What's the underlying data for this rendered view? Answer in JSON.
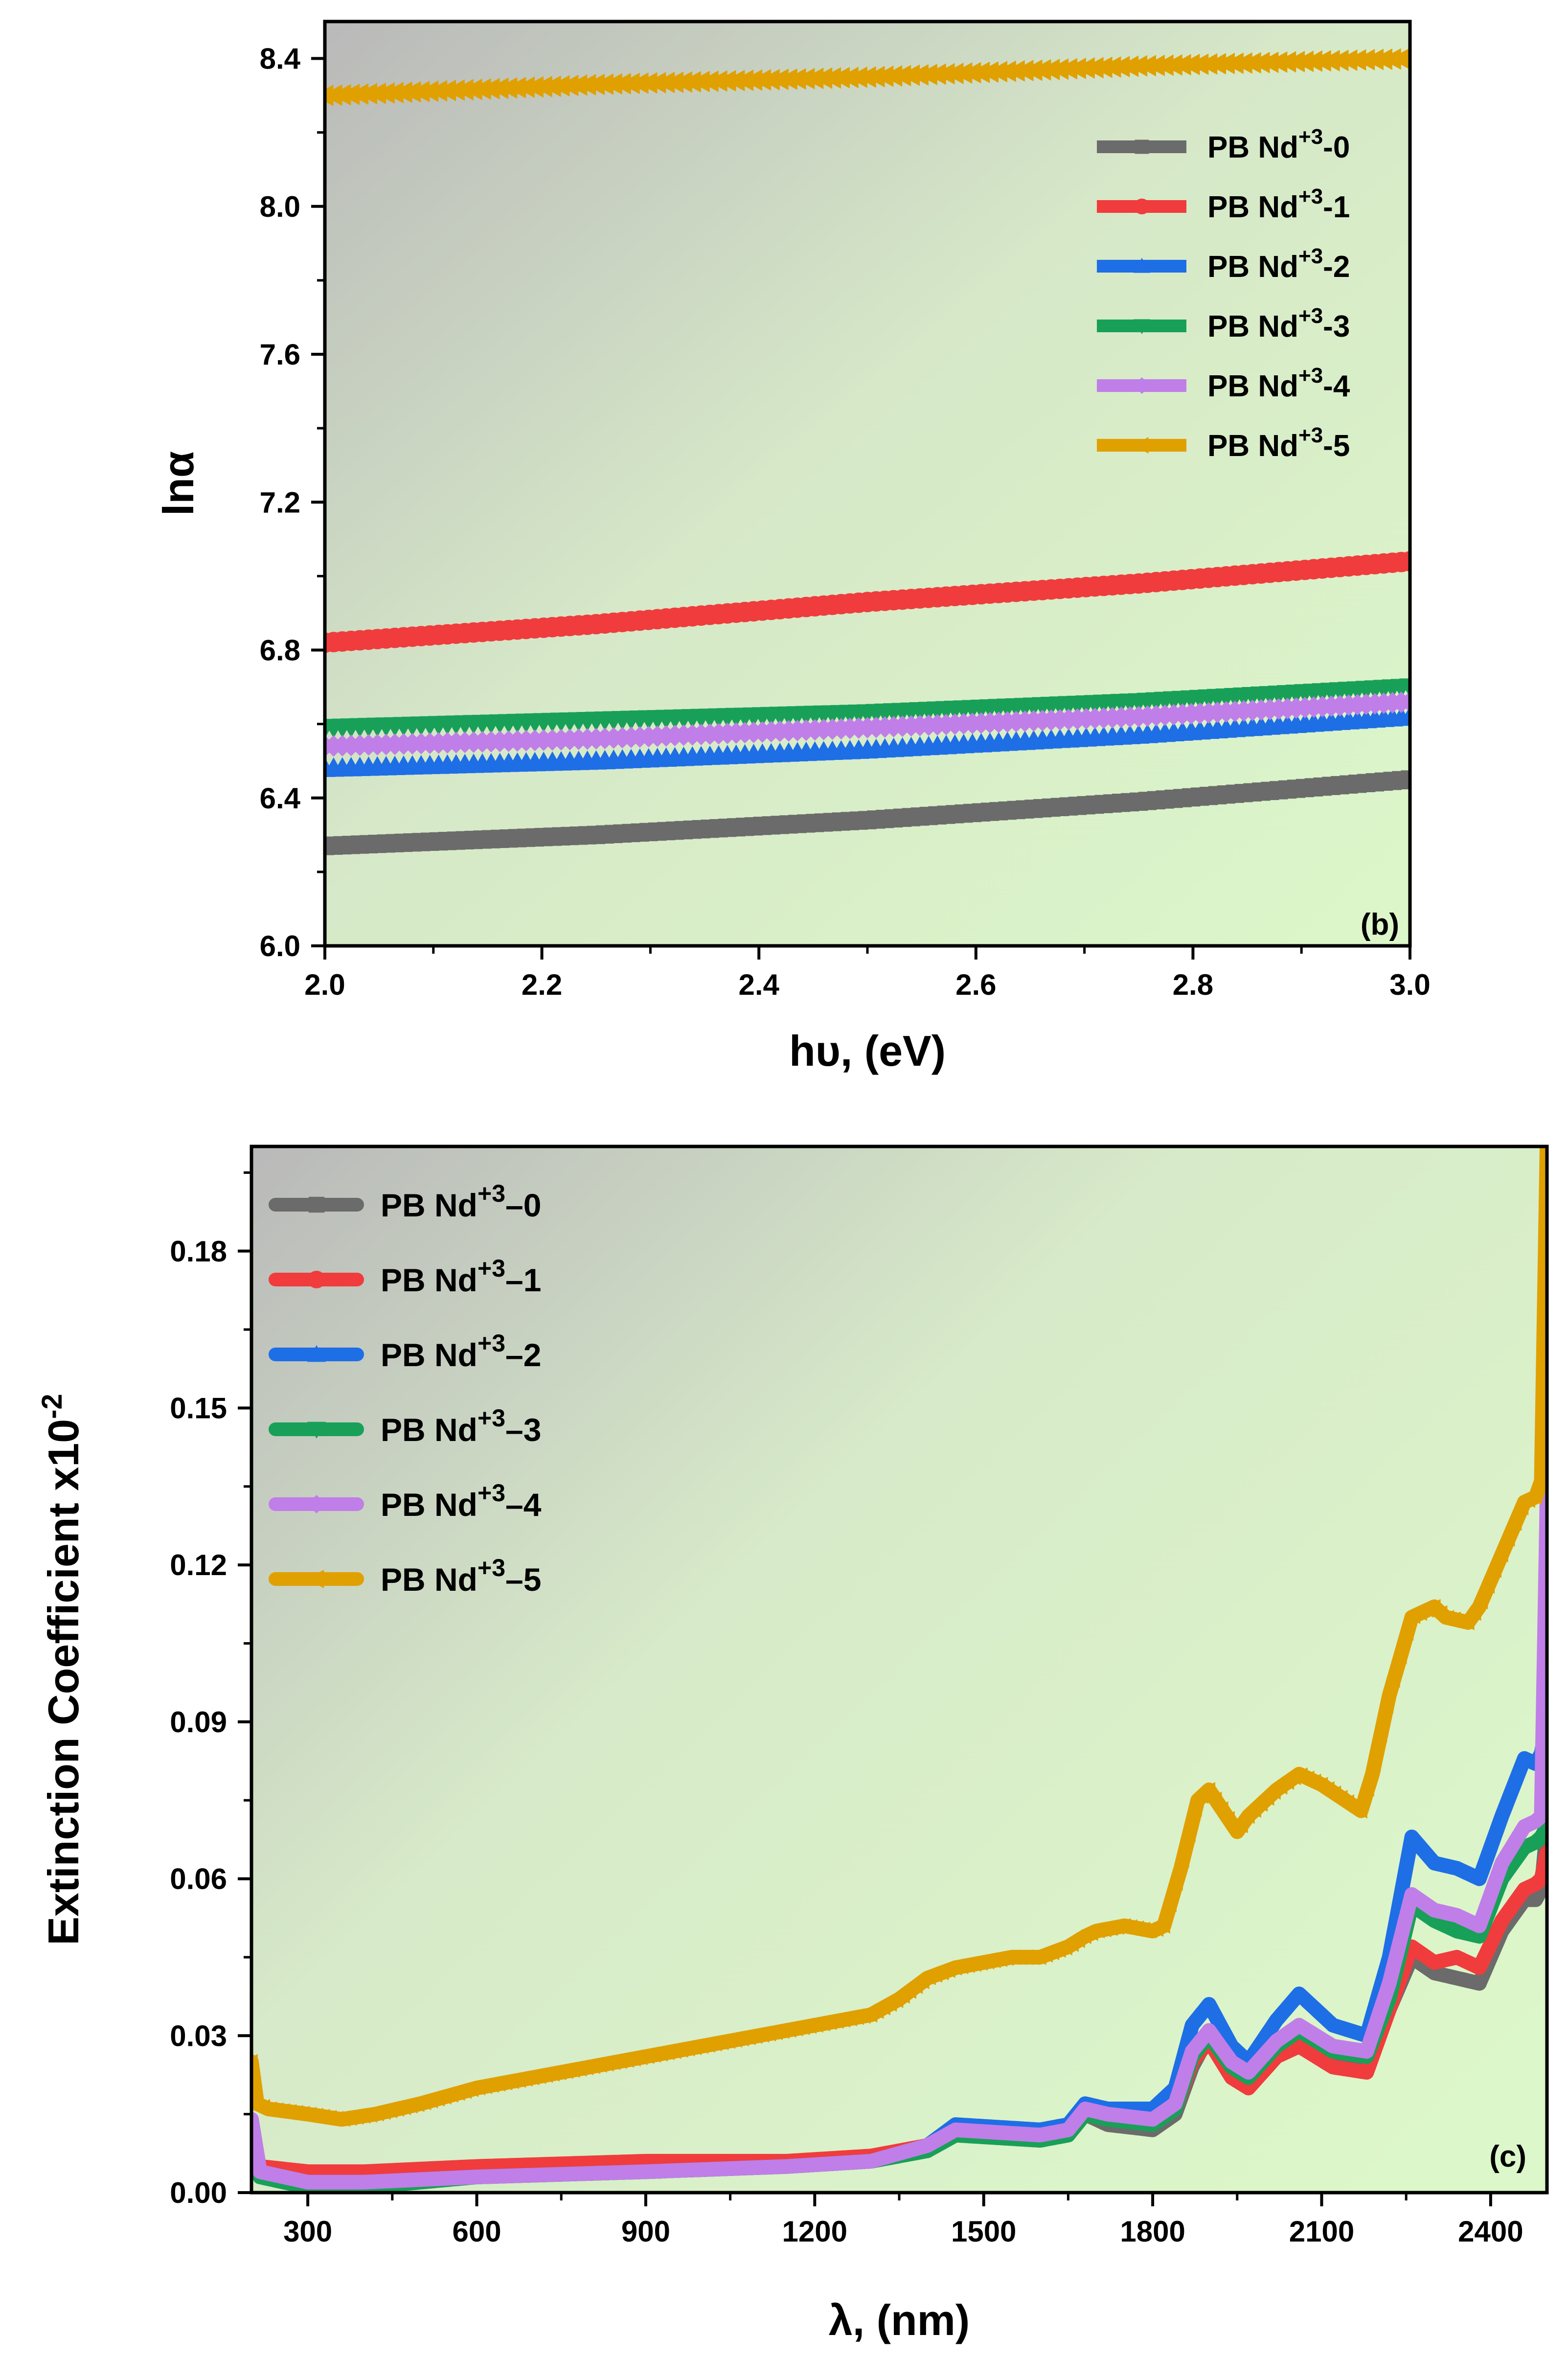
{
  "chart_data": [
    {
      "type": "scatter",
      "panel_label": "(b)",
      "xlabel": "hυ, (eV)",
      "ylabel": "lnα",
      "xlim": [
        2.0,
        3.0
      ],
      "ylim": [
        6.0,
        8.5
      ],
      "xticks": [
        "2.0",
        "2.2",
        "2.4",
        "2.6",
        "2.8",
        "3.0"
      ],
      "yticks": [
        "6.0",
        "6.4",
        "6.8",
        "7.2",
        "7.6",
        "8.0",
        "8.4"
      ],
      "legend_position": "top-right",
      "background": "gradient gray (top-left) to light green",
      "series": [
        {
          "name_prefix": "PB Nd",
          "sup": "+3",
          "suffix": "-0",
          "color": "#6b6b6b",
          "marker": "square",
          "x": [
            2.0,
            2.25,
            2.5,
            2.75,
            3.0
          ],
          "y": [
            6.27,
            6.3,
            6.34,
            6.39,
            6.45
          ]
        },
        {
          "name_prefix": "PB Nd",
          "sup": "+3",
          "suffix": "-1",
          "color": "#f03c3c",
          "marker": "circle",
          "x": [
            2.0,
            2.25,
            2.5,
            2.75,
            3.0
          ],
          "y": [
            6.82,
            6.87,
            6.93,
            6.98,
            7.04
          ]
        },
        {
          "name_prefix": "PB Nd",
          "sup": "+3",
          "suffix": "-2",
          "color": "#1e6ee6",
          "marker": "triangle-up",
          "x": [
            2.0,
            2.25,
            2.5,
            2.75,
            3.0
          ],
          "y": [
            6.48,
            6.5,
            6.53,
            6.57,
            6.62
          ]
        },
        {
          "name_prefix": "PB Nd",
          "sup": "+3",
          "suffix": "-3",
          "color": "#18a058",
          "marker": "triangle-down",
          "x": [
            2.0,
            2.25,
            2.5,
            2.75,
            3.0
          ],
          "y": [
            6.59,
            6.61,
            6.63,
            6.66,
            6.7
          ]
        },
        {
          "name_prefix": "PB Nd",
          "sup": "+3",
          "suffix": "-4",
          "color": "#c07ee8",
          "marker": "diamond",
          "x": [
            2.0,
            2.25,
            2.5,
            2.75,
            3.0
          ],
          "y": [
            6.54,
            6.56,
            6.59,
            6.62,
            6.66
          ]
        },
        {
          "name_prefix": "PB Nd",
          "sup": "+3",
          "suffix": "-5",
          "color": "#e0a000",
          "marker": "triangle-left",
          "x": [
            2.0,
            2.25,
            2.5,
            2.75,
            3.0
          ],
          "y": [
            8.3,
            8.33,
            8.35,
            8.38,
            8.4
          ]
        }
      ]
    },
    {
      "type": "line",
      "panel_label": "(c)",
      "xlabel": "λ, (nm)",
      "ylabel": "Extinction Coefficient x10",
      "ylabel_sup": "-2",
      "xlim": [
        200,
        2500
      ],
      "ylim": [
        0.0,
        0.2
      ],
      "xticks": [
        "300",
        "600",
        "900",
        "1200",
        "1500",
        "1800",
        "2100",
        "2400"
      ],
      "yticks": [
        "0.00",
        "0.03",
        "0.06",
        "0.09",
        "0.12",
        "0.15",
        "0.18"
      ],
      "legend_position": "top-left",
      "background": "gradient gray (top-left) to light green",
      "series": [
        {
          "name_prefix": "PB Nd",
          "sup": "+3",
          "suffix": "–0",
          "color": "#6b6b6b",
          "marker": "square",
          "x": [
            200,
            215,
            300,
            400,
            600,
            900,
            1150,
            1300,
            1400,
            1450,
            1600,
            1650,
            1680,
            1720,
            1800,
            1840,
            1870,
            1900,
            1940,
            1970,
            2020,
            2060,
            2120,
            2180,
            2220,
            2260,
            2300,
            2340,
            2380,
            2420,
            2460,
            2480,
            2490,
            2500
          ],
          "y": [
            0.014,
            0.004,
            0.002,
            0.002,
            0.003,
            0.004,
            0.005,
            0.006,
            0.008,
            0.011,
            0.01,
            0.011,
            0.015,
            0.013,
            0.012,
            0.015,
            0.024,
            0.03,
            0.024,
            0.02,
            0.026,
            0.029,
            0.025,
            0.024,
            0.035,
            0.045,
            0.042,
            0.041,
            0.04,
            0.05,
            0.056,
            0.056,
            0.058,
            0.07
          ]
        },
        {
          "name_prefix": "PB Nd",
          "sup": "+3",
          "suffix": "–1",
          "color": "#f03c3c",
          "marker": "circle",
          "x": [
            200,
            215,
            300,
            400,
            600,
            900,
            1150,
            1300,
            1400,
            1450,
            1600,
            1650,
            1680,
            1720,
            1800,
            1840,
            1870,
            1900,
            1940,
            1970,
            2020,
            2060,
            2120,
            2180,
            2220,
            2260,
            2300,
            2340,
            2380,
            2420,
            2460,
            2480,
            2490,
            2500
          ],
          "y": [
            0.01,
            0.005,
            0.004,
            0.004,
            0.005,
            0.006,
            0.006,
            0.007,
            0.009,
            0.011,
            0.011,
            0.012,
            0.015,
            0.014,
            0.013,
            0.016,
            0.025,
            0.029,
            0.022,
            0.02,
            0.026,
            0.028,
            0.024,
            0.023,
            0.035,
            0.047,
            0.044,
            0.045,
            0.043,
            0.052,
            0.058,
            0.059,
            0.06,
            0.065
          ]
        },
        {
          "name_prefix": "PB Nd",
          "sup": "+3",
          "suffix": "–2",
          "color": "#1e6ee6",
          "marker": "triangle-up",
          "x": [
            200,
            215,
            300,
            400,
            600,
            900,
            1150,
            1300,
            1400,
            1450,
            1600,
            1650,
            1680,
            1720,
            1800,
            1840,
            1870,
            1900,
            1940,
            1970,
            2020,
            2060,
            2120,
            2180,
            2220,
            2260,
            2300,
            2340,
            2380,
            2420,
            2460,
            2480,
            2490,
            2500
          ],
          "y": [
            0.012,
            0.004,
            0.002,
            0.002,
            0.003,
            0.004,
            0.005,
            0.006,
            0.009,
            0.013,
            0.012,
            0.013,
            0.017,
            0.016,
            0.016,
            0.02,
            0.032,
            0.036,
            0.028,
            0.025,
            0.033,
            0.038,
            0.032,
            0.03,
            0.045,
            0.068,
            0.063,
            0.062,
            0.06,
            0.072,
            0.083,
            0.082,
            0.084,
            0.09
          ]
        },
        {
          "name_prefix": "PB Nd",
          "sup": "+3",
          "suffix": "–3",
          "color": "#18a058",
          "marker": "triangle-down",
          "x": [
            200,
            215,
            300,
            400,
            600,
            900,
            1150,
            1300,
            1400,
            1450,
            1600,
            1650,
            1680,
            1720,
            1800,
            1840,
            1870,
            1900,
            1940,
            1970,
            2020,
            2060,
            2120,
            2180,
            2220,
            2260,
            2300,
            2340,
            2380,
            2420,
            2460,
            2480,
            2490,
            2500
          ],
          "y": [
            0.013,
            0.003,
            0.001,
            0.001,
            0.003,
            0.004,
            0.005,
            0.006,
            0.008,
            0.011,
            0.01,
            0.011,
            0.015,
            0.014,
            0.013,
            0.016,
            0.026,
            0.03,
            0.024,
            0.022,
            0.028,
            0.031,
            0.027,
            0.026,
            0.037,
            0.055,
            0.052,
            0.05,
            0.049,
            0.06,
            0.066,
            0.067,
            0.068,
            0.07
          ]
        },
        {
          "name_prefix": "PB Nd",
          "sup": "+3",
          "suffix": "–4",
          "color": "#c07ee8",
          "marker": "diamond",
          "x": [
            200,
            215,
            300,
            400,
            600,
            900,
            1150,
            1300,
            1400,
            1450,
            1600,
            1650,
            1680,
            1720,
            1800,
            1840,
            1870,
            1900,
            1940,
            1970,
            2020,
            2060,
            2120,
            2180,
            2220,
            2260,
            2300,
            2340,
            2380,
            2420,
            2460,
            2480,
            2490,
            2500
          ],
          "y": [
            0.014,
            0.004,
            0.002,
            0.002,
            0.003,
            0.004,
            0.005,
            0.006,
            0.009,
            0.012,
            0.011,
            0.012,
            0.016,
            0.015,
            0.014,
            0.017,
            0.027,
            0.031,
            0.025,
            0.023,
            0.029,
            0.032,
            0.028,
            0.027,
            0.04,
            0.057,
            0.054,
            0.053,
            0.051,
            0.063,
            0.07,
            0.071,
            0.072,
            0.133
          ]
        },
        {
          "name_prefix": "PB Nd",
          "sup": "+3",
          "suffix": "–5",
          "color": "#e0a000",
          "marker": "triangle-left",
          "x": [
            200,
            210,
            230,
            300,
            360,
            420,
            500,
            600,
            700,
            800,
            900,
            1000,
            1100,
            1200,
            1300,
            1350,
            1400,
            1450,
            1500,
            1550,
            1600,
            1650,
            1680,
            1700,
            1750,
            1800,
            1820,
            1850,
            1880,
            1900,
            1950,
            1970,
            2020,
            2060,
            2100,
            2170,
            2190,
            2220,
            2260,
            2300,
            2320,
            2360,
            2380,
            2420,
            2460,
            2480,
            2490,
            2500
          ],
          "y": [
            0.025,
            0.017,
            0.016,
            0.015,
            0.014,
            0.015,
            0.017,
            0.02,
            0.022,
            0.024,
            0.026,
            0.028,
            0.03,
            0.032,
            0.034,
            0.037,
            0.041,
            0.043,
            0.044,
            0.045,
            0.045,
            0.047,
            0.049,
            0.05,
            0.051,
            0.05,
            0.051,
            0.062,
            0.075,
            0.077,
            0.069,
            0.072,
            0.077,
            0.08,
            0.078,
            0.073,
            0.08,
            0.095,
            0.11,
            0.112,
            0.11,
            0.109,
            0.112,
            0.122,
            0.132,
            0.133,
            0.136,
            0.2
          ]
        }
      ]
    }
  ]
}
